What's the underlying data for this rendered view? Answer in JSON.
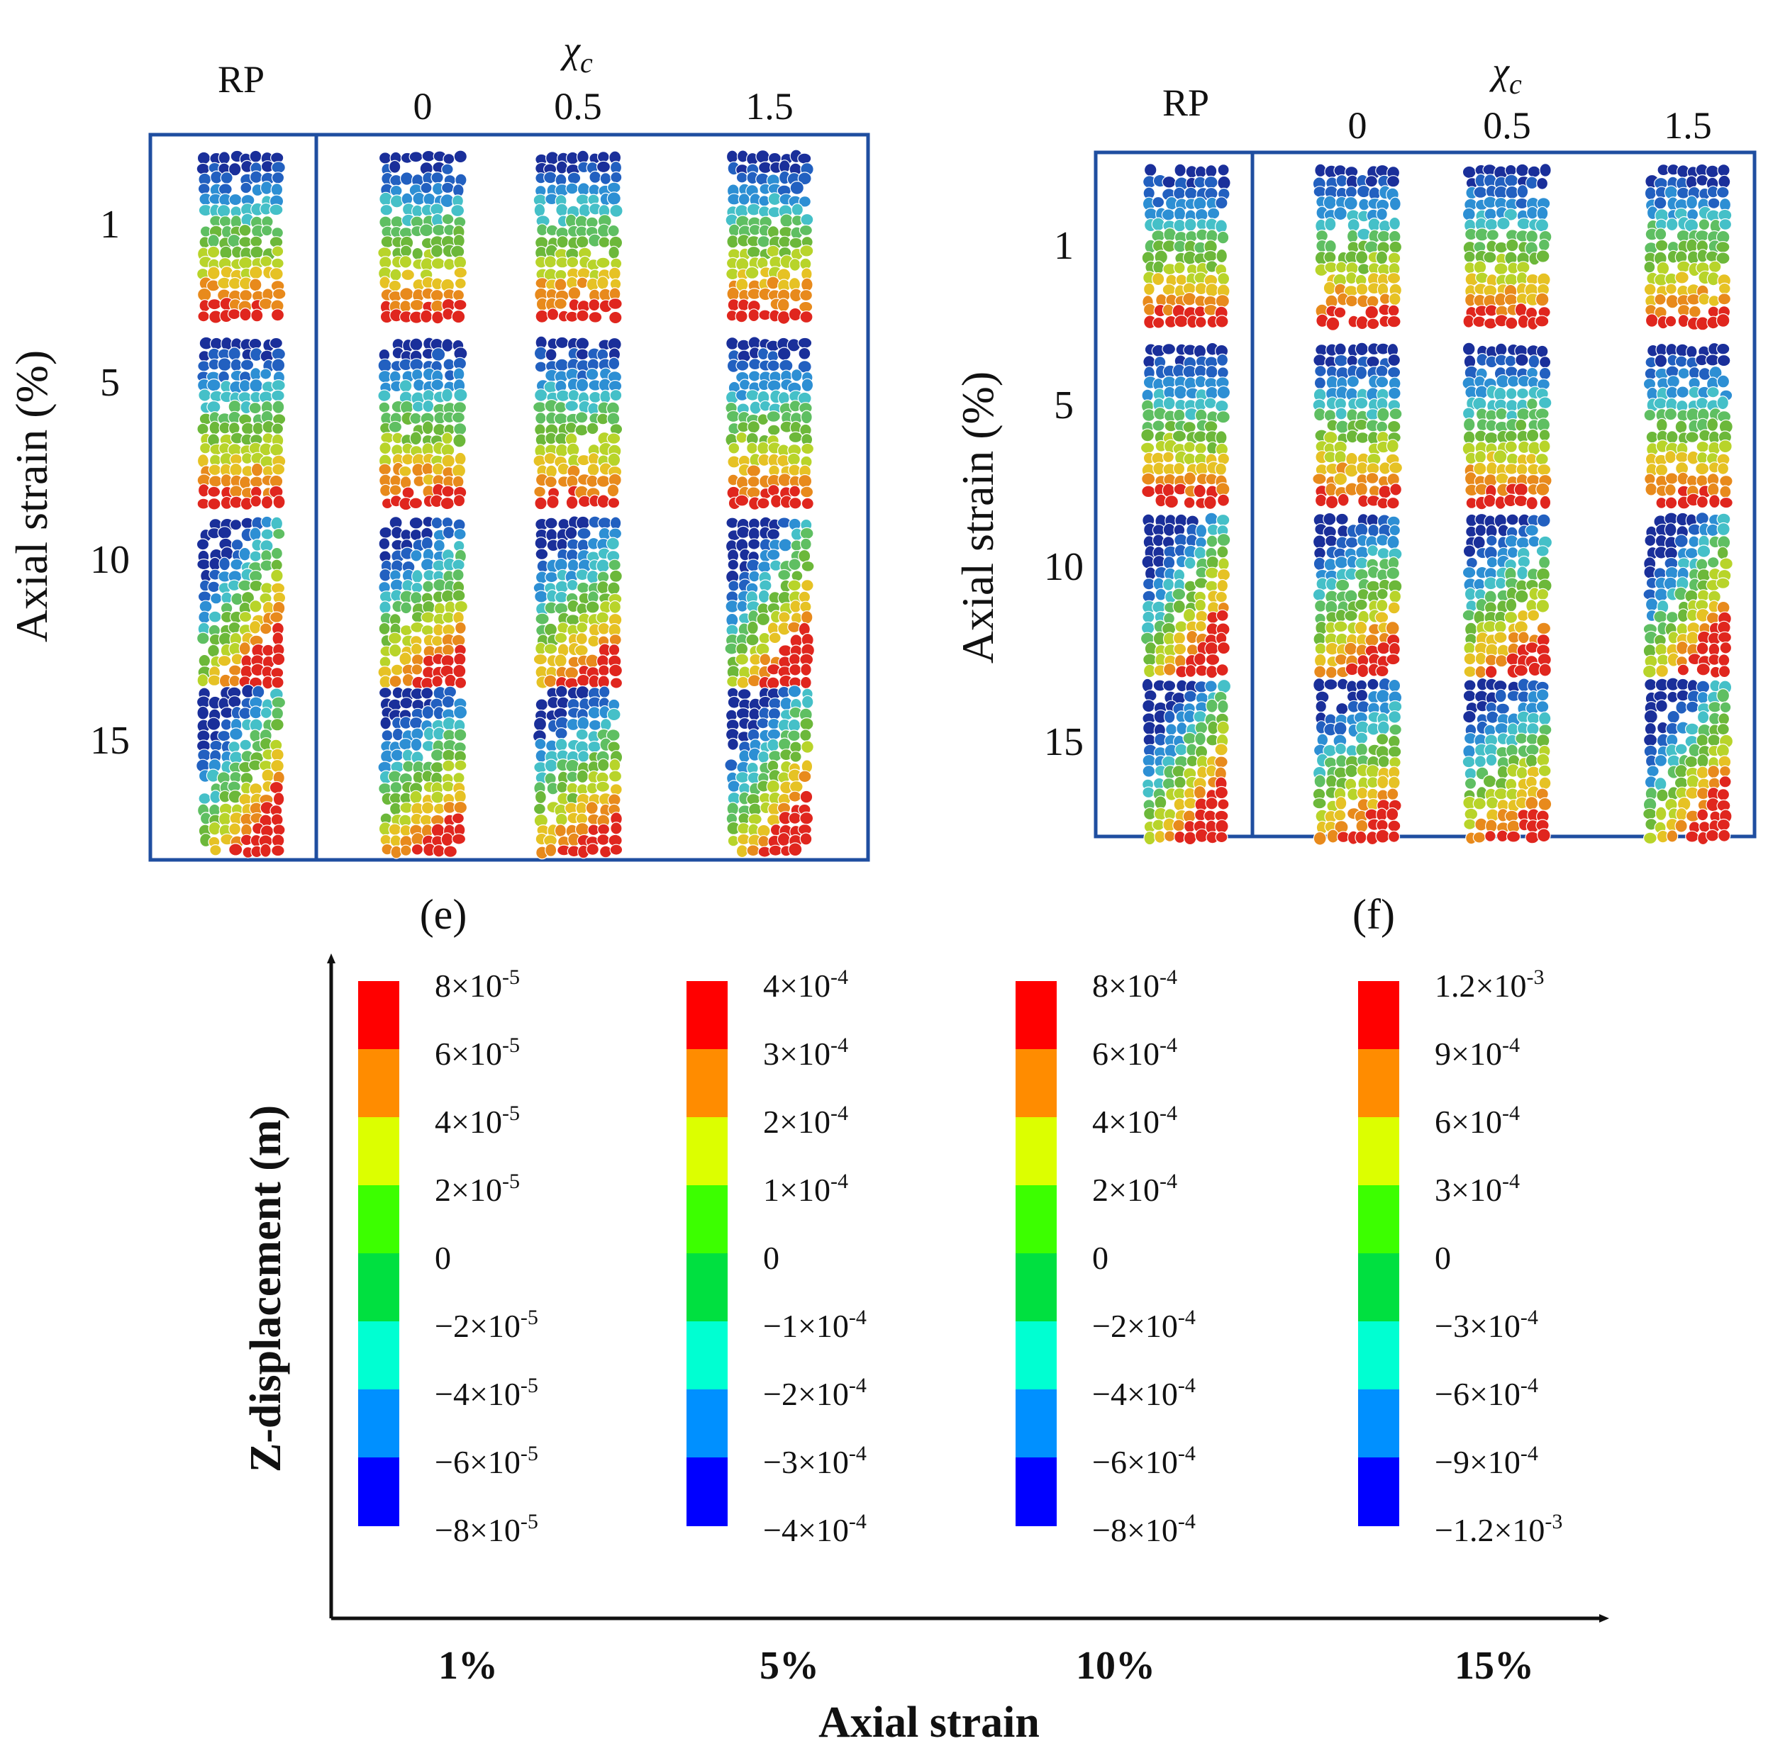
{
  "panels": [
    {
      "id": "e",
      "label": "(e)",
      "rp_label": "RP",
      "chi_label": "χ",
      "chi_sub": "c",
      "columns": [
        "0",
        "0.5",
        "1.5"
      ],
      "rows": [
        "1",
        "5",
        "10",
        "15"
      ],
      "y_axis_title": "Axial strain (%)"
    },
    {
      "id": "f",
      "label": "(f)",
      "rp_label": "RP",
      "chi_label": "χ",
      "chi_sub": "c",
      "columns": [
        "0",
        "0.5",
        "1.5"
      ],
      "rows": [
        "1",
        "5",
        "10",
        "15"
      ],
      "y_axis_title": "Axial strain (%)"
    }
  ],
  "legend": {
    "y_axis_title": "Z-displacement (m)",
    "x_axis_title": "Axial strain",
    "band_colors": [
      "#ff0000",
      "#ff8c00",
      "#dcff00",
      "#3cff00",
      "#00e040",
      "#00ffd2",
      "#0090ff",
      "#0000ff"
    ],
    "groups": [
      {
        "category": "1%",
        "labels": [
          {
            "m": "8×10",
            "e": "-5"
          },
          {
            "m": "6×10",
            "e": "-5"
          },
          {
            "m": "4×10",
            "e": "-5"
          },
          {
            "m": "2×10",
            "e": "-5"
          },
          {
            "m": "0",
            "e": ""
          },
          {
            "m": "−2×10",
            "e": "-5"
          },
          {
            "m": "−4×10",
            "e": "-5"
          },
          {
            "m": "−6×10",
            "e": "-5"
          },
          {
            "m": "−8×10",
            "e": "-5"
          }
        ]
      },
      {
        "category": "5%",
        "labels": [
          {
            "m": "4×10",
            "e": "-4"
          },
          {
            "m": "3×10",
            "e": "-4"
          },
          {
            "m": "2×10",
            "e": "-4"
          },
          {
            "m": "1×10",
            "e": "-4"
          },
          {
            "m": "0",
            "e": ""
          },
          {
            "m": "−1×10",
            "e": "-4"
          },
          {
            "m": "−2×10",
            "e": "-4"
          },
          {
            "m": "−3×10",
            "e": "-4"
          },
          {
            "m": "−4×10",
            "e": "-4"
          }
        ]
      },
      {
        "category": "10%",
        "labels": [
          {
            "m": "8×10",
            "e": "-4"
          },
          {
            "m": "6×10",
            "e": "-4"
          },
          {
            "m": "4×10",
            "e": "-4"
          },
          {
            "m": "2×10",
            "e": "-4"
          },
          {
            "m": "0",
            "e": ""
          },
          {
            "m": "−2×10",
            "e": "-4"
          },
          {
            "m": "−4×10",
            "e": "-4"
          },
          {
            "m": "−6×10",
            "e": "-4"
          },
          {
            "m": "−8×10",
            "e": "-4"
          }
        ]
      },
      {
        "category": "15%",
        "labels": [
          {
            "m": "1.2×10",
            "e": "-3"
          },
          {
            "m": "9×10",
            "e": "-4"
          },
          {
            "m": "6×10",
            "e": "-4"
          },
          {
            "m": "3×10",
            "e": "-4"
          },
          {
            "m": "0",
            "e": ""
          },
          {
            "m": "−3×10",
            "e": "-4"
          },
          {
            "m": "−6×10",
            "e": "-4"
          },
          {
            "m": "−9×10",
            "e": "-4"
          },
          {
            "m": "−1.2×10",
            "e": "-3"
          }
        ]
      }
    ]
  }
}
